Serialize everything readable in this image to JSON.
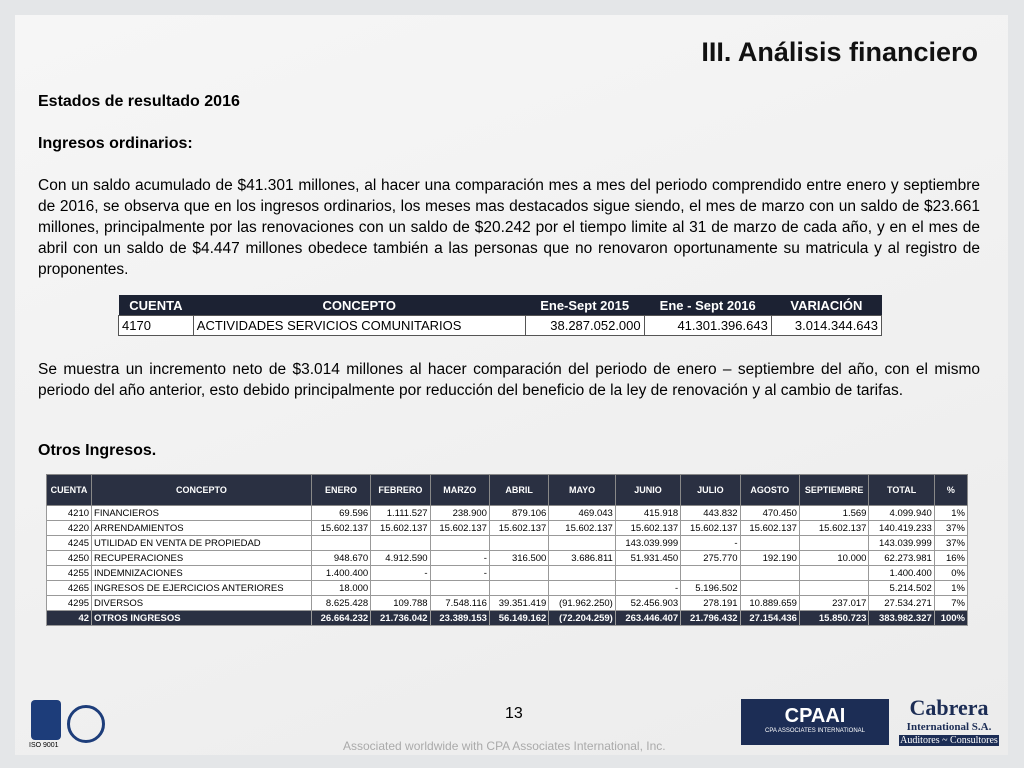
{
  "header": {
    "title": "III. Análisis financiero"
  },
  "section_title": "Estados de resultado 2016",
  "subsection1": "Ingresos ordinarios:",
  "paragraph1": "Con un saldo  acumulado de $41.301 millones, al hacer una comparación mes a mes del periodo comprendido entre enero y septiembre de 2016, se observa que en los ingresos ordinarios, los meses mas destacados sigue siendo, el mes de marzo con un saldo de $23.661 millones, principalmente por las renovaciones con un saldo de $20.242 por el tiempo limite al 31 de marzo de cada año, y en el mes de abril con un saldo de $4.447 millones obedece también a las personas que no renovaron oportunamente su matricula y al registro de proponentes.",
  "table1": {
    "columns": [
      "CUENTA",
      "CONCEPTO",
      "Ene-Sept 2015",
      "Ene - Sept 2016",
      "VARIACIÓN"
    ],
    "rows": [
      [
        "4170",
        "ACTIVIDADES SERVICIOS COMUNITARIOS",
        "38.287.052.000",
        "41.301.396.643",
        "3.014.344.643"
      ]
    ]
  },
  "paragraph2": "Se muestra un incremento neto de $3.014 millones al hacer comparación del periodo de enero – septiembre del año, con el mismo periodo del año anterior, esto debido principalmente por reducción del beneficio de la ley de renovación y al cambio de tarifas.",
  "subsection2": "Otros Ingresos.",
  "table2": {
    "columns": [
      "CUENTA",
      "CONCEPTO",
      "ENERO",
      "FEBRERO",
      "MARZO",
      "ABRIL",
      "MAYO",
      "JUNIO",
      "JULIO",
      "AGOSTO",
      "SEPTIEMBRE",
      "TOTAL",
      "%"
    ],
    "rows": [
      [
        "4210",
        "FINANCIEROS",
        "69.596",
        "1.111.527",
        "238.900",
        "879.106",
        "469.043",
        "415.918",
        "443.832",
        "470.450",
        "1.569",
        "4.099.940",
        "1%"
      ],
      [
        "4220",
        "ARRENDAMIENTOS",
        "15.602.137",
        "15.602.137",
        "15.602.137",
        "15.602.137",
        "15.602.137",
        "15.602.137",
        "15.602.137",
        "15.602.137",
        "15.602.137",
        "140.419.233",
        "37%"
      ],
      [
        "4245",
        "UTILIDAD EN VENTA DE PROPIEDAD",
        null,
        null,
        null,
        null,
        null,
        "143.039.999",
        "-",
        null,
        null,
        "143.039.999",
        "37%"
      ],
      [
        "4250",
        "RECUPERACIONES",
        "948.670",
        "4.912.590",
        "-",
        "316.500",
        "3.686.811",
        "51.931.450",
        "275.770",
        "192.190",
        "10.000",
        "62.273.981",
        "16%"
      ],
      [
        "4255",
        "INDEMNIZACIONES",
        "1.400.400",
        "-",
        "-",
        null,
        null,
        null,
        null,
        null,
        null,
        "1.400.400",
        "0%"
      ],
      [
        "4265",
        "INGRESOS DE EJERCICIOS ANTERIORES",
        "18.000",
        null,
        null,
        null,
        null,
        "-",
        "5.196.502",
        null,
        null,
        "5.214.502",
        "1%"
      ],
      [
        "4295",
        "DIVERSOS",
        "8.625.428",
        "109.788",
        "7.548.116",
        "39.351.419",
        "(91.962.250)",
        "52.456.903",
        "278.191",
        "10.889.659",
        "237.017",
        "27.534.271",
        "7%"
      ]
    ],
    "total": [
      "42",
      "OTROS INGRESOS",
      "26.664.232",
      "21.736.042",
      "23.389.153",
      "56.149.162",
      "(72.204.259)",
      "263.446.407",
      "21.796.432",
      "27.154.436",
      "15.850.723",
      "383.982.327",
      "100%"
    ]
  },
  "footer": {
    "page": "13",
    "note": "Associated worldwide with CPA Associates International, Inc.",
    "iso": "ISO 9001",
    "cpaai": "CPAAI",
    "cpaai_sub": "CPA ASSOCIATES INTERNATIONAL",
    "brand": "Cabrera",
    "brand_sub": "International S.A.",
    "brand_tag": "Auditores ~ Consultores"
  }
}
